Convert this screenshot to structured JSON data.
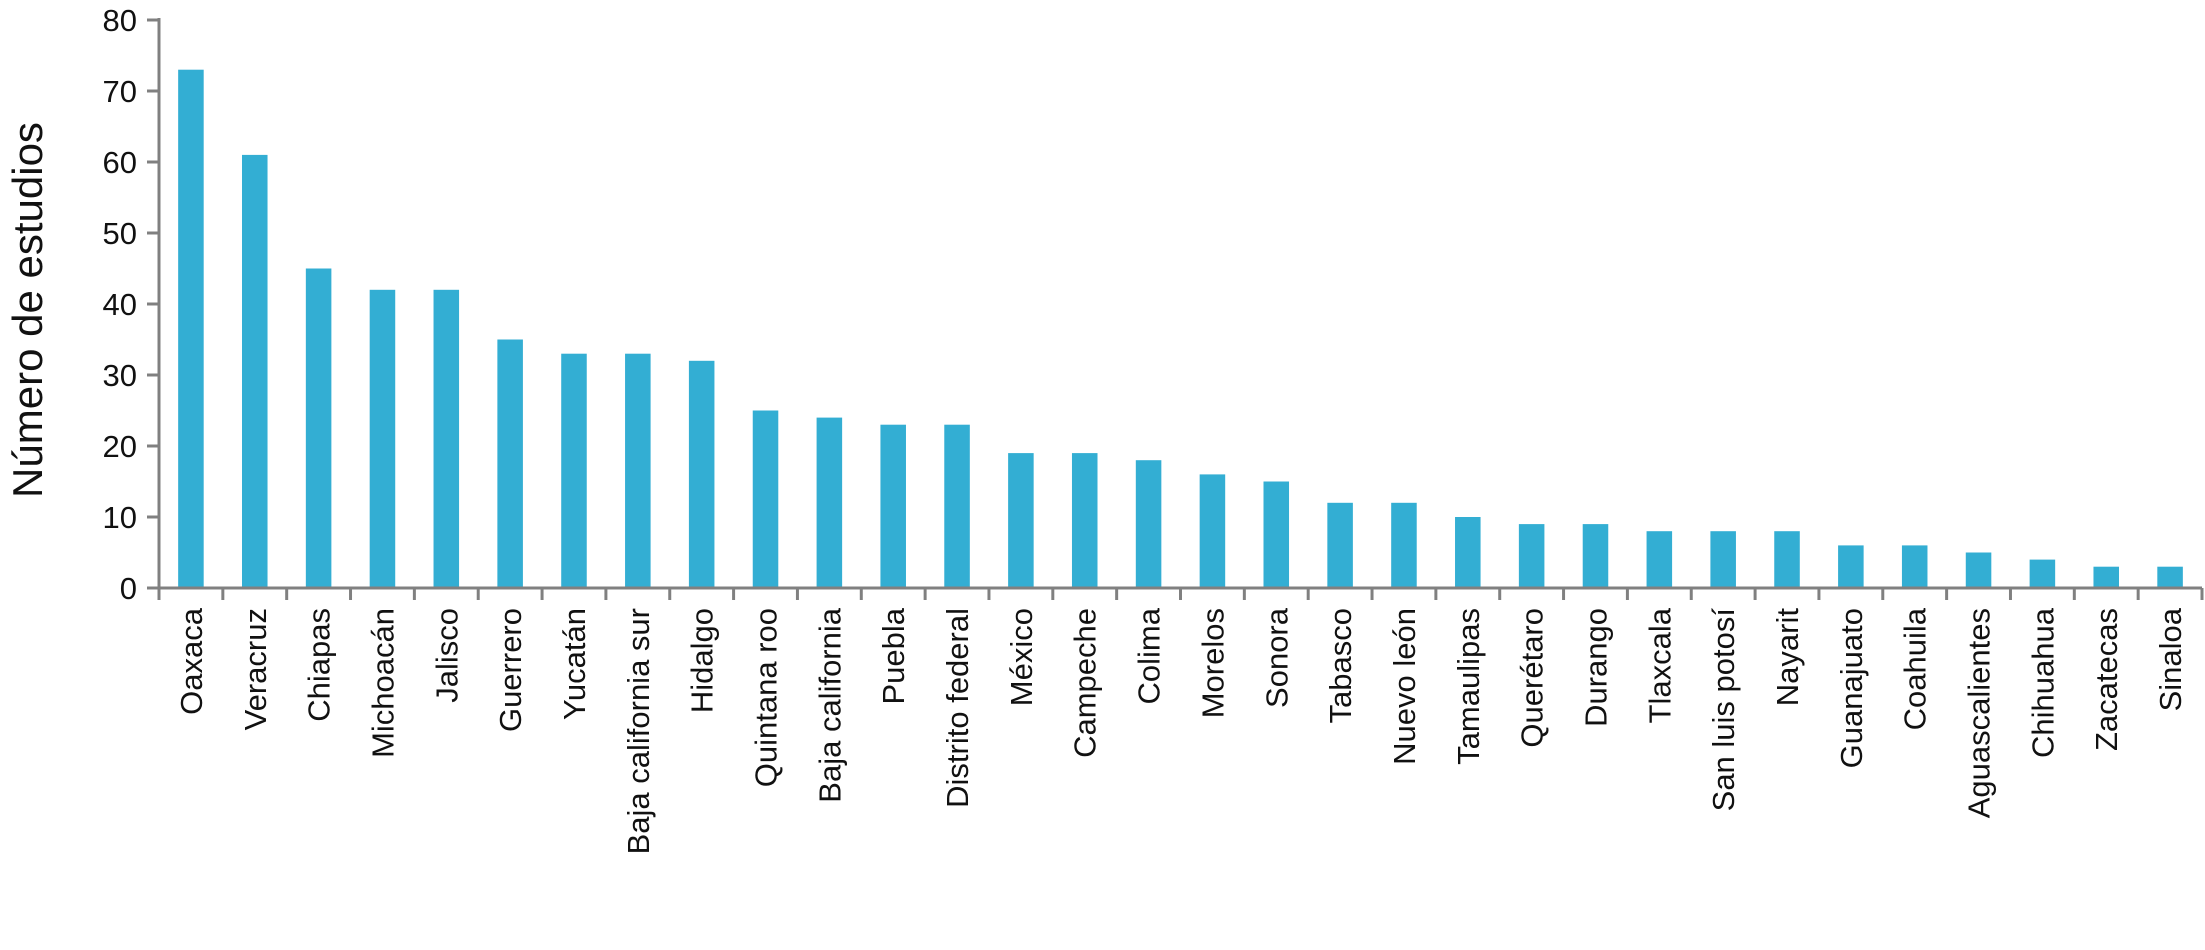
{
  "chart_data": {
    "type": "bar",
    "y_label": "Número de estudios",
    "categories": [
      "Oaxaca",
      "Veracruz",
      "Chiapas",
      "Michoacán",
      "Jalisco",
      "Guerrero",
      "Yucatán",
      "Baja california sur",
      "Hidalgo",
      "Quintana roo",
      "Baja california",
      "Puebla",
      "Distrito federal",
      "México",
      "Campeche",
      "Colima",
      "Morelos",
      "Sonora",
      "Tabasco",
      "Nuevo león",
      "Tamaulipas",
      "Querétaro",
      "Durango",
      "Tlaxcala",
      "San luis potosí",
      "Nayarit",
      "Guanajuato",
      "Coahuila",
      "Aguascalientes",
      "Chihuahua",
      "Zacatecas",
      "Sinaloa"
    ],
    "values": [
      73,
      61,
      45,
      42,
      42,
      35,
      33,
      33,
      32,
      25,
      24,
      23,
      23,
      19,
      19,
      18,
      16,
      15,
      12,
      12,
      10,
      9,
      9,
      8,
      8,
      8,
      6,
      6,
      5,
      4,
      3,
      3
    ],
    "color": "#33aed3",
    "ylim": [
      0,
      80
    ],
    "yticks": [
      0,
      10,
      20,
      30,
      40,
      50,
      60,
      70,
      80
    ],
    "grid": false
  }
}
